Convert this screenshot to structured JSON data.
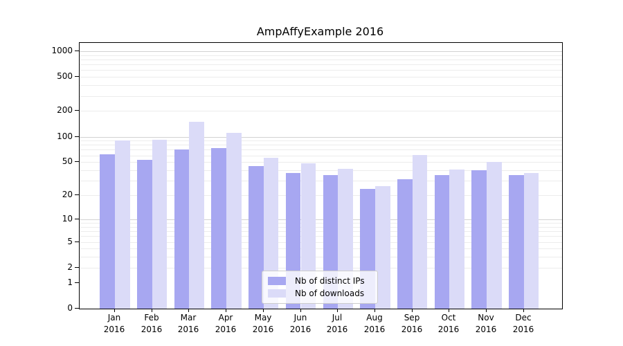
{
  "chart_data": {
    "type": "bar",
    "title": "AmpAffyExample 2016",
    "scale": "log1p",
    "categories": [
      "Jan 2016",
      "Feb 2016",
      "Mar 2016",
      "Apr 2016",
      "May 2016",
      "Jun 2016",
      "Jul 2016",
      "Aug 2016",
      "Sep 2016",
      "Oct 2016",
      "Nov 2016",
      "Dec 2016"
    ],
    "series": [
      {
        "name": "Nb of distinct IPs",
        "color": "#a7a7f1",
        "values": [
          62,
          53,
          71,
          74,
          45,
          37,
          35,
          24,
          31,
          35,
          40,
          35
        ]
      },
      {
        "name": "Nb of downloads",
        "color": "#dbdbf8",
        "values": [
          91,
          92,
          150,
          111,
          56,
          48,
          42,
          26,
          61,
          41,
          50,
          37
        ]
      }
    ],
    "yticks": [
      0,
      1,
      2,
      5,
      10,
      20,
      50,
      100,
      200,
      500,
      1000
    ],
    "major_grid_values": [
      10,
      100,
      1000
    ],
    "minor_grid_decades": [
      1,
      10,
      100
    ],
    "ylim": [
      0,
      1250
    ],
    "xlabel": "",
    "ylabel": "",
    "grid": "both",
    "legend_position": "lower-center",
    "colors": {
      "major_grid": "#d2d2d2",
      "minor_grid": "#ececec",
      "axis": "#000000",
      "text": "#000000",
      "background": "#ffffff"
    }
  }
}
